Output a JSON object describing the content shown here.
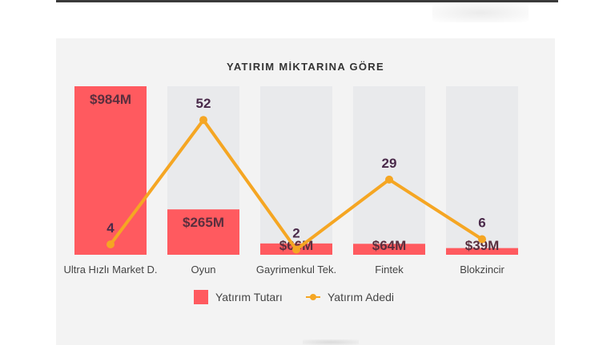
{
  "chart_data": {
    "type": "bar",
    "title": "YATIRIM MİKTARINA GÖRE",
    "categories": [
      "Ultra Hızlı Market D.",
      "Oyun",
      "Gayrimenkul Tek.",
      "Fintek",
      "Blokzincir"
    ],
    "series": [
      {
        "name": "Yatırım Tutarı",
        "type": "bar",
        "values": [
          984,
          265,
          66,
          64,
          39
        ],
        "labels": [
          "$984M",
          "$265M",
          "$66M",
          "$64M",
          "$39M"
        ],
        "color": "#ff5a5f"
      },
      {
        "name": "Yatırım Adedi",
        "type": "line",
        "values": [
          4,
          52,
          2,
          29,
          6
        ],
        "labels": [
          "4",
          "52",
          "2",
          "29",
          "6"
        ],
        "color": "#f5a623"
      }
    ],
    "ylim": [
      0,
      984
    ],
    "y2lim": [
      0,
      65
    ],
    "grid": false,
    "legend": "bottom",
    "background_bar_color": "#e9eaec"
  }
}
